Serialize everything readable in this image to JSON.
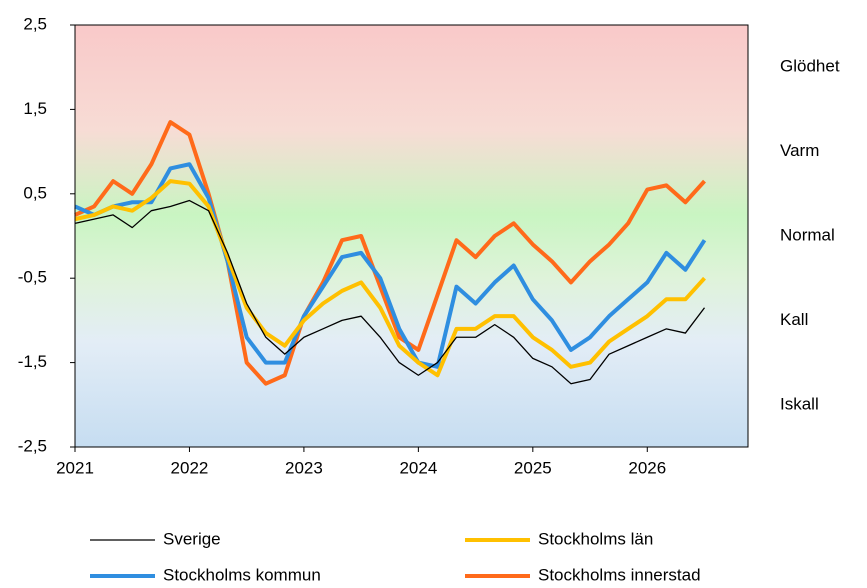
{
  "chart_data": {
    "type": "line",
    "x": [
      2021,
      2021.167,
      2021.333,
      2021.5,
      2021.667,
      2021.833,
      2022,
      2022.167,
      2022.333,
      2022.5,
      2022.667,
      2022.833,
      2023,
      2023.167,
      2023.333,
      2023.5,
      2023.667,
      2023.833,
      2024,
      2024.167,
      2024.333,
      2024.5,
      2024.667,
      2024.833,
      2025,
      2025.167,
      2025.333,
      2025.5,
      2025.667,
      2025.833,
      2026,
      2026.167,
      2026.333,
      2026.5
    ],
    "series": [
      {
        "name": "Sverige",
        "color": "#000000",
        "values": [
          0.15,
          0.2,
          0.25,
          0.1,
          0.3,
          0.35,
          0.42,
          0.3,
          -0.2,
          -0.8,
          -1.2,
          -1.4,
          -1.2,
          -1.1,
          -1.0,
          -0.95,
          -1.2,
          -1.5,
          -1.65,
          -1.5,
          -1.2,
          -1.2,
          -1.05,
          -1.2,
          -1.45,
          -1.55,
          -1.75,
          -1.7,
          -1.4,
          -1.3,
          -1.2,
          -1.1,
          -1.15,
          -0.85
        ]
      },
      {
        "name": "Stockholms län",
        "color": "#ffc000",
        "values": [
          0.2,
          0.25,
          0.35,
          0.3,
          0.45,
          0.65,
          0.62,
          0.35,
          -0.25,
          -0.85,
          -1.15,
          -1.3,
          -1.0,
          -0.8,
          -0.65,
          -0.55,
          -0.85,
          -1.3,
          -1.5,
          -1.65,
          -1.1,
          -1.1,
          -0.95,
          -0.95,
          -1.2,
          -1.35,
          -1.55,
          -1.5,
          -1.25,
          -1.1,
          -0.95,
          -0.75,
          -0.75,
          -0.5
        ]
      },
      {
        "name": "Stockholms kommun",
        "color": "#2f8ee0",
        "values": [
          0.35,
          0.25,
          0.35,
          0.4,
          0.4,
          0.8,
          0.85,
          0.45,
          -0.3,
          -1.2,
          -1.5,
          -1.5,
          -0.95,
          -0.6,
          -0.25,
          -0.2,
          -0.5,
          -1.1,
          -1.5,
          -1.55,
          -0.6,
          -0.8,
          -0.55,
          -0.35,
          -0.75,
          -1.0,
          -1.35,
          -1.2,
          -0.95,
          -0.75,
          -0.55,
          -0.2,
          -0.4,
          -0.05
        ]
      },
      {
        "name": "Stockholms innerstad",
        "color": "#ff6a1a",
        "values": [
          0.25,
          0.35,
          0.65,
          0.5,
          0.85,
          1.35,
          1.2,
          0.5,
          -0.3,
          -1.5,
          -1.75,
          -1.65,
          -0.95,
          -0.55,
          -0.05,
          0,
          -0.6,
          -1.2,
          -1.35,
          -0.7,
          -0.05,
          -0.25,
          0,
          0.15,
          -0.1,
          -0.3,
          -0.55,
          -0.3,
          -0.1,
          0.15,
          0.55,
          0.6,
          0.4,
          0.65
        ]
      }
    ],
    "xlim": [
      2021,
      2026.88
    ],
    "xticks": [
      2021,
      2022,
      2023,
      2024,
      2025,
      2026
    ],
    "ylim": [
      -2.5,
      2.5
    ],
    "yticks": [
      {
        "value": 2.5,
        "label": "2,5"
      },
      {
        "value": 1.5,
        "label": "1,5"
      },
      {
        "value": 0.5,
        "label": "0,5"
      },
      {
        "value": -0.5,
        "label": "-0,5"
      },
      {
        "value": -1.5,
        "label": "-1,5"
      },
      {
        "value": -2.5,
        "label": "-2,5"
      }
    ],
    "zones": [
      "Glödhet",
      "Varm",
      "Normal",
      "Kall",
      "Iskall"
    ]
  }
}
